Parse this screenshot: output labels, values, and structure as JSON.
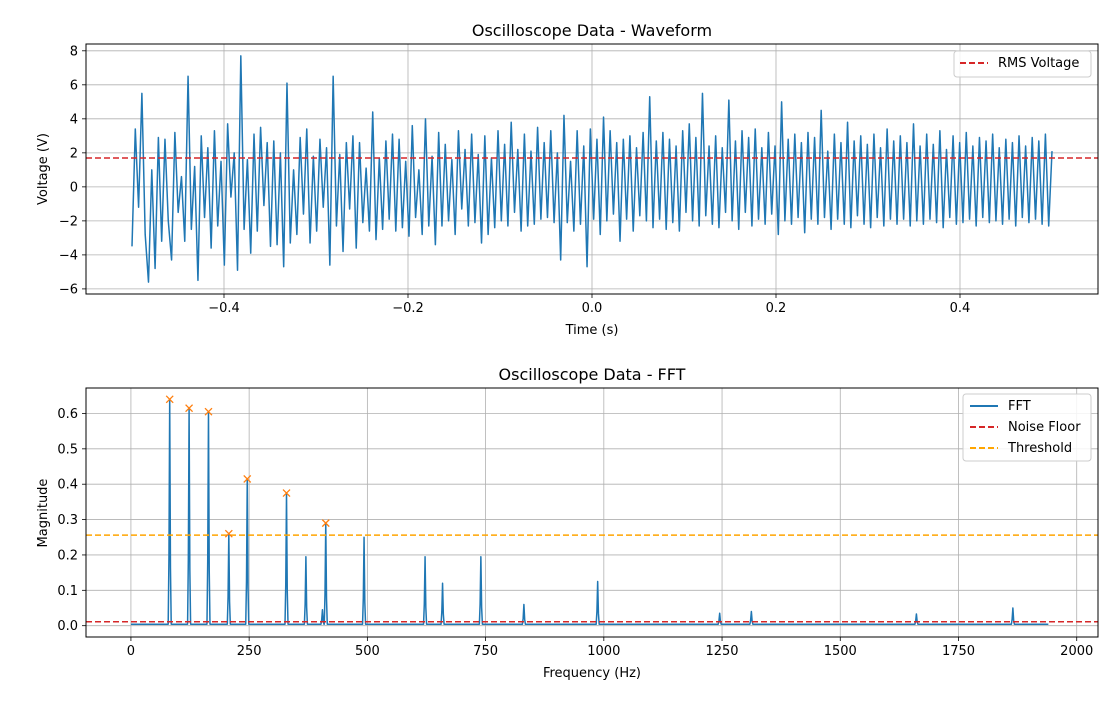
{
  "chart_data": [
    {
      "type": "line",
      "title": "Oscilloscope Data - Waveform",
      "xlabel": "Time (s)",
      "ylabel": "Voltage (V)",
      "xlim": [
        -0.55,
        0.55
      ],
      "ylim": [
        -6.3,
        8.4
      ],
      "xticks": [
        -0.4,
        -0.2,
        0.0,
        0.2,
        0.4
      ],
      "xtick_labels": [
        "−0.4",
        "−0.2",
        "0.0",
        "0.2",
        "0.4"
      ],
      "yticks": [
        -6,
        -4,
        -2,
        0,
        2,
        4,
        6,
        8
      ],
      "ytick_labels": [
        "−6",
        "−4",
        "−2",
        "0",
        "2",
        "4",
        "6",
        "8"
      ],
      "grid": true,
      "legend_position": "top-right",
      "series": [
        {
          "name": "",
          "color": "#1f77b4",
          "style": "solid",
          "x_range": [
            -0.5,
            0.5
          ],
          "values": [
            -3.5,
            3.4,
            -1.2,
            5.5,
            -2.8,
            -5.6,
            1.0,
            -4.8,
            2.9,
            -3.2,
            2.8,
            -2.0,
            -4.3,
            3.2,
            -1.5,
            0.6,
            -3.2,
            6.5,
            -2.5,
            1.2,
            -5.5,
            3.0,
            -1.8,
            2.3,
            -3.6,
            3.3,
            -2.3,
            1.5,
            -4.6,
            3.7,
            -0.6,
            2.0,
            -4.9,
            7.7,
            -2.5,
            1.6,
            -3.9,
            3.1,
            -2.6,
            3.5,
            -1.1,
            2.6,
            -3.5,
            2.7,
            -3.4,
            2.0,
            -4.7,
            6.1,
            -3.3,
            1.0,
            -2.8,
            2.9,
            -1.6,
            3.4,
            -3.3,
            1.8,
            -2.6,
            2.8,
            -1.2,
            2.3,
            -4.6,
            6.5,
            -2.3,
            1.9,
            -3.8,
            2.6,
            -1.3,
            3.0,
            -3.6,
            2.6,
            -2.1,
            1.1,
            -2.6,
            4.4,
            -3.1,
            1.7,
            -2.5,
            2.7,
            -1.9,
            3.1,
            -2.6,
            2.8,
            -2.4,
            1.5,
            -2.9,
            3.6,
            -1.8,
            1.0,
            -2.8,
            4.0,
            -2.3,
            1.8,
            -3.4,
            3.2,
            -2.3,
            2.5,
            -2.0,
            1.6,
            -2.8,
            3.3,
            -1.3,
            2.2,
            -2.3,
            3.1,
            -2.1,
            1.9,
            -3.3,
            3.0,
            -2.8,
            1.7,
            -2.4,
            3.3,
            -2.0,
            2.5,
            -2.3,
            3.8,
            -1.5,
            2.2,
            -2.6,
            3.1,
            -2.3,
            2.1,
            -2.2,
            3.5,
            -1.9,
            2.6,
            -1.8,
            3.3,
            -2.1,
            2.0,
            -4.3,
            4.2,
            -2.1,
            1.5,
            -2.6,
            3.3,
            -2.2,
            2.4,
            -4.7,
            3.4,
            -1.9,
            2.8,
            -2.8,
            4.1,
            -2.0,
            3.3,
            -1.6,
            2.6,
            -3.2,
            2.8,
            -1.9,
            3.0,
            -2.6,
            2.3,
            -1.7,
            3.2,
            -2.0,
            5.3,
            -2.4,
            2.7,
            -1.9,
            3.2,
            -2.5,
            2.8,
            -2.1,
            2.4,
            -2.6,
            3.3,
            -1.5,
            3.7,
            -2.0,
            2.9,
            -2.3,
            5.5,
            -1.7,
            2.4,
            -2.2,
            3.0,
            -2.4,
            2.3,
            -1.5,
            5.1,
            -2.0,
            2.7,
            -2.5,
            3.3,
            -1.5,
            2.9,
            -2.3,
            3.4,
            -1.9,
            2.3,
            -2.2,
            3.2,
            -1.6,
            2.4,
            -2.8,
            5.0,
            -2.0,
            2.8,
            -2.2,
            3.1,
            -1.8,
            2.6,
            -2.7,
            3.2,
            -1.9,
            2.9,
            -2.2,
            4.5,
            -1.8,
            2.1,
            -2.5,
            3.1,
            -1.9,
            2.6,
            -2.2,
            3.8,
            -2.4,
            2.7,
            -1.7,
            3.0,
            -2.2,
            2.5,
            -2.4,
            3.1,
            -1.8,
            2.3,
            -2.3,
            3.4,
            -1.9,
            2.7,
            -2.2,
            3.0,
            -1.9,
            2.6,
            -2.3,
            3.7,
            -2.0,
            2.4,
            -2.2,
            3.1,
            -1.9,
            2.5,
            -2.1,
            3.3,
            -2.4,
            2.2,
            -1.8,
            3.0,
            -2.2,
            2.6,
            -2.1,
            3.2,
            -1.9,
            2.4,
            -2.3,
            2.9,
            -1.8,
            2.7,
            -2.1,
            3.1,
            -2.0,
            2.3,
            -2.2,
            2.8,
            -1.9,
            2.6,
            -2.3,
            3.0,
            -1.8,
            2.4,
            -2.1,
            2.9,
            -1.9,
            2.7,
            -2.2,
            3.1,
            -2.3,
            2.1
          ]
        },
        {
          "name": "RMS Voltage",
          "color": "#d62728",
          "style": "dashed",
          "y": 1.7
        }
      ]
    },
    {
      "type": "line",
      "title": "Oscilloscope Data - FFT",
      "xlabel": "Frequency (Hz)",
      "ylabel": "Magnitude",
      "xlim": [
        -95,
        2045
      ],
      "ylim": [
        -0.032,
        0.672
      ],
      "xticks": [
        0,
        250,
        500,
        750,
        1000,
        1250,
        1500,
        1750,
        2000
      ],
      "xtick_labels": [
        "0",
        "250",
        "500",
        "750",
        "1000",
        "1250",
        "1500",
        "1750",
        "2000"
      ],
      "yticks": [
        0.0,
        0.1,
        0.2,
        0.3,
        0.4,
        0.5,
        0.6
      ],
      "ytick_labels": [
        "0.0",
        "0.1",
        "0.2",
        "0.3",
        "0.4",
        "0.5",
        "0.6"
      ],
      "grid": true,
      "legend_position": "top-right",
      "x_range": [
        0,
        1940
      ],
      "baseline": 0.004,
      "series": [
        {
          "name": "FFT",
          "color": "#1f77b4",
          "style": "solid",
          "peaks": [
            {
              "x": 82,
              "y": 0.64
            },
            {
              "x": 123,
              "y": 0.615
            },
            {
              "x": 164,
              "y": 0.605
            },
            {
              "x": 207,
              "y": 0.26
            },
            {
              "x": 246,
              "y": 0.415
            },
            {
              "x": 329,
              "y": 0.375
            },
            {
              "x": 370,
              "y": 0.195
            },
            {
              "x": 405,
              "y": 0.045
            },
            {
              "x": 412,
              "y": 0.29
            },
            {
              "x": 493,
              "y": 0.25
            },
            {
              "x": 622,
              "y": 0.195
            },
            {
              "x": 659,
              "y": 0.12
            },
            {
              "x": 740,
              "y": 0.195
            },
            {
              "x": 831,
              "y": 0.06
            },
            {
              "x": 987,
              "y": 0.125
            },
            {
              "x": 1245,
              "y": 0.035
            },
            {
              "x": 1312,
              "y": 0.04
            },
            {
              "x": 1661,
              "y": 0.033
            },
            {
              "x": 1865,
              "y": 0.05
            }
          ]
        },
        {
          "name": "Noise Floor",
          "color": "#d62728",
          "style": "dashed",
          "y": 0.011
        },
        {
          "name": "Threshold",
          "color": "#ffa500",
          "style": "dashed",
          "y": 0.256
        },
        {
          "name": "",
          "color": "#ff7f0e",
          "style": "x-markers",
          "points": [
            {
              "x": 82,
              "y": 0.64
            },
            {
              "x": 123,
              "y": 0.615
            },
            {
              "x": 164,
              "y": 0.605
            },
            {
              "x": 207,
              "y": 0.26
            },
            {
              "x": 246,
              "y": 0.415
            },
            {
              "x": 329,
              "y": 0.375
            },
            {
              "x": 412,
              "y": 0.29
            }
          ]
        }
      ]
    }
  ]
}
